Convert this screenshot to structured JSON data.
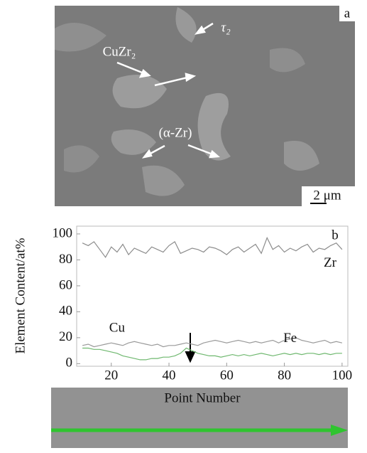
{
  "panel_a": {
    "label": "a",
    "scale_bar": "2 μm",
    "annotations": [
      "CuZr₂",
      "τ₂",
      "(α-Zr)"
    ]
  },
  "chart_data": {
    "type": "line",
    "panel_label": "b",
    "x_label": "Point Number",
    "y_label": "Element Content/at%",
    "x": [
      10,
      12,
      14,
      16,
      18,
      20,
      22,
      24,
      26,
      28,
      30,
      32,
      34,
      36,
      38,
      40,
      42,
      44,
      46,
      48,
      50,
      52,
      54,
      56,
      58,
      60,
      62,
      64,
      66,
      68,
      70,
      72,
      74,
      76,
      78,
      80,
      82,
      84,
      86,
      88,
      90,
      92,
      94,
      96,
      98,
      100
    ],
    "series": [
      {
        "name": "Zr",
        "color": "#8c8c8c",
        "values": [
          93,
          91,
          94,
          88,
          82,
          90,
          86,
          92,
          84,
          89,
          87,
          85,
          90,
          88,
          86,
          91,
          94,
          85,
          87,
          89,
          88,
          86,
          90,
          89,
          87,
          84,
          88,
          90,
          86,
          89,
          92,
          85,
          97,
          88,
          91,
          86,
          89,
          87,
          90,
          92,
          86,
          89,
          88,
          91,
          93,
          88
        ]
      },
      {
        "name": "Cu",
        "color": "#9a9a9a",
        "values": [
          14,
          15,
          13,
          14,
          15,
          16,
          15,
          14,
          16,
          17,
          16,
          15,
          14,
          15,
          13,
          14,
          14,
          15,
          16,
          15,
          14,
          16,
          17,
          18,
          17,
          16,
          17,
          18,
          17,
          16,
          17,
          16,
          17,
          18,
          16,
          18,
          19,
          20,
          18,
          17,
          16,
          17,
          18,
          16,
          17,
          16
        ]
      },
      {
        "name": "Fe",
        "color": "#6fb86f",
        "values": [
          12,
          12,
          11,
          11,
          10,
          9,
          8,
          6,
          5,
          4,
          3,
          3,
          4,
          4,
          5,
          5,
          6,
          8,
          12,
          10,
          8,
          7,
          6,
          6,
          5,
          6,
          7,
          6,
          7,
          6,
          7,
          8,
          7,
          6,
          7,
          8,
          7,
          8,
          7,
          8,
          8,
          7,
          8,
          7,
          8,
          8
        ]
      }
    ],
    "xlim": [
      8,
      102
    ],
    "xticks": [
      20,
      40,
      60,
      80,
      100
    ],
    "ylim": [
      -2,
      106
    ],
    "yticks": [
      0,
      20,
      40,
      60,
      80,
      100
    ]
  }
}
